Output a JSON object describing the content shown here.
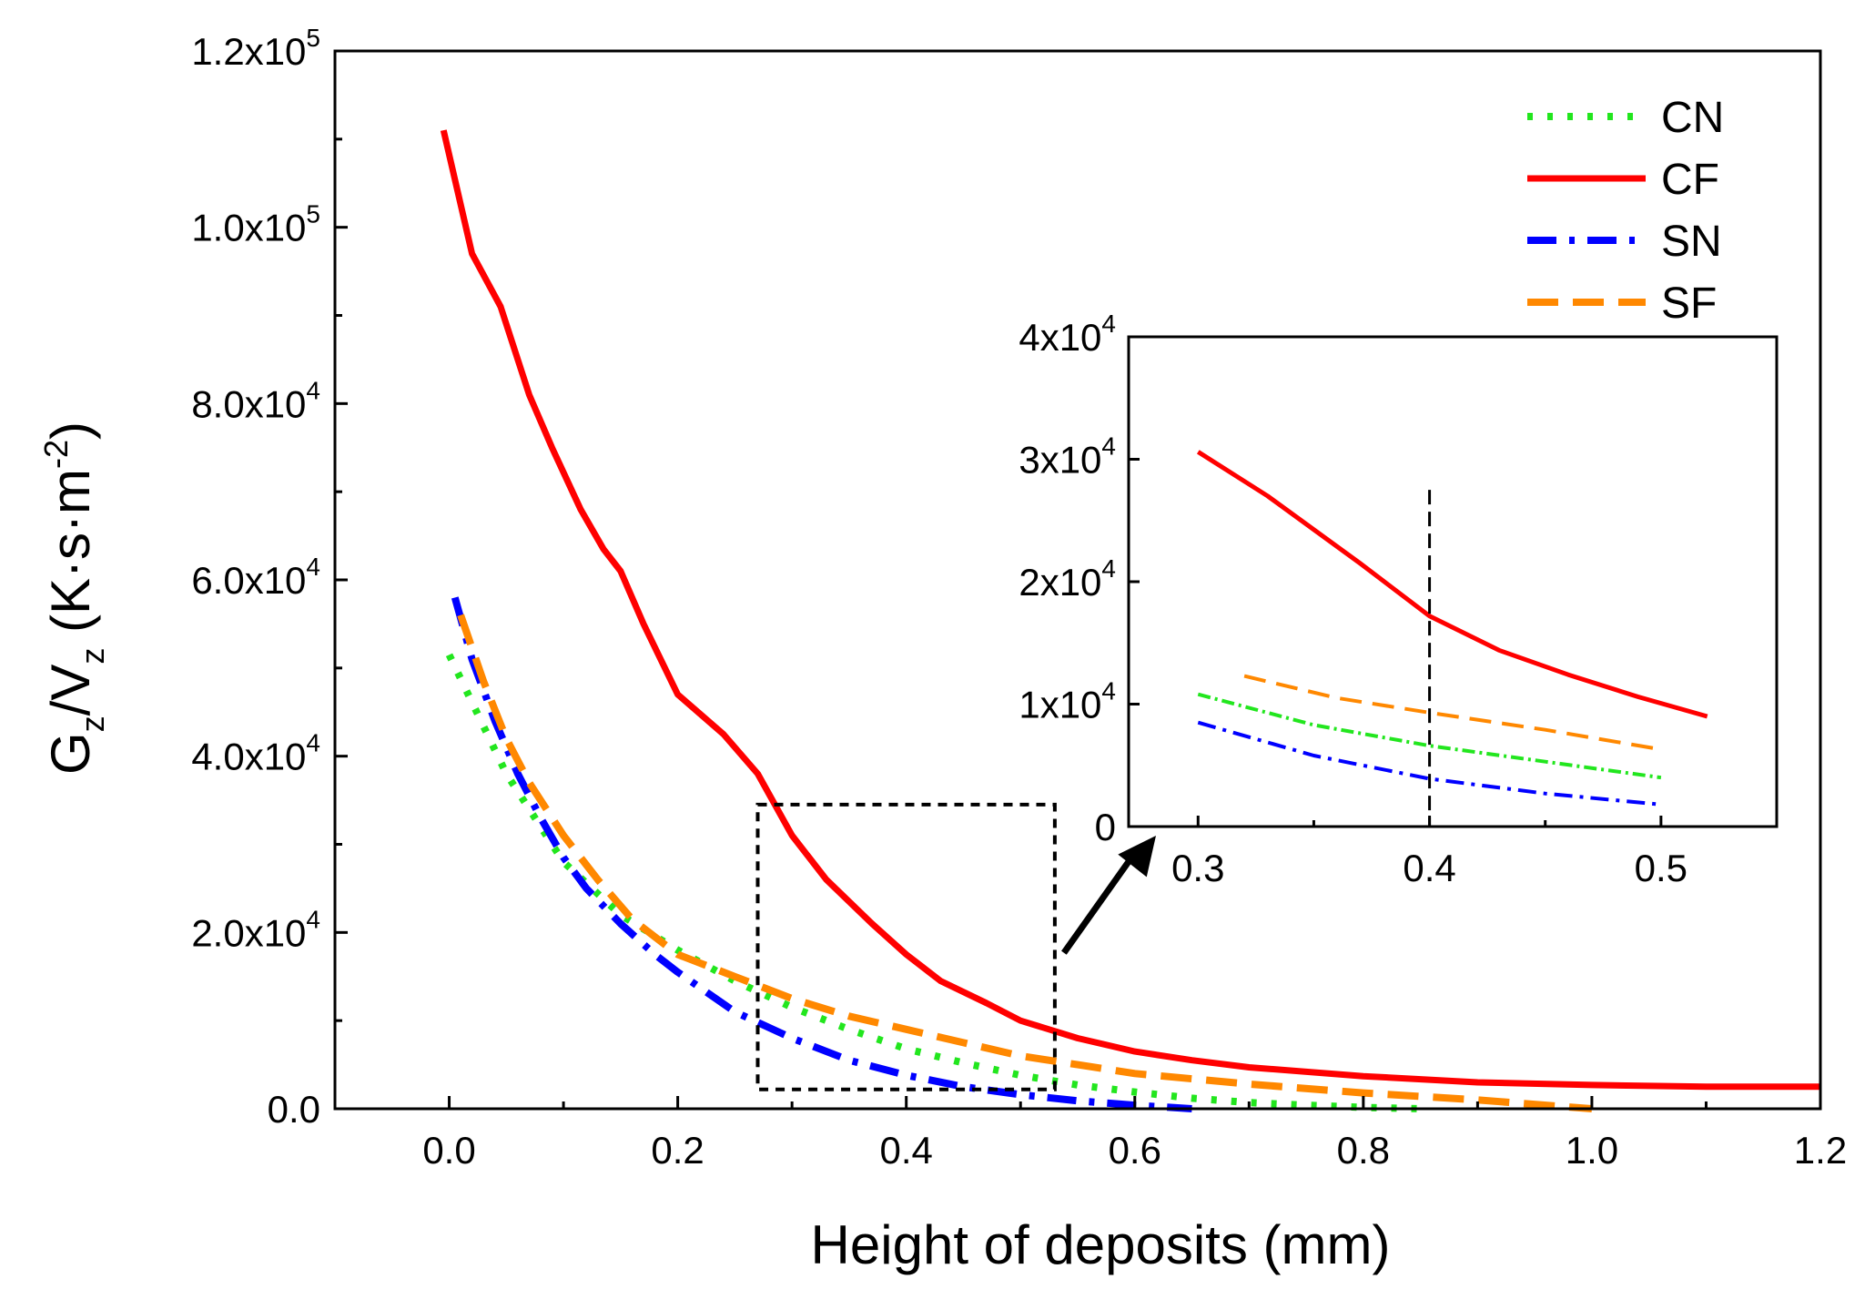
{
  "chart_data": {
    "type": "line",
    "xlabel": "Height of deposits (mm)",
    "ylabel": {
      "main": "G",
      "sub1": "z",
      "slash": "/V",
      "sub2": "z",
      "unit": " (K·s·m",
      "exp": "-2",
      "close": ")"
    },
    "xlim": [
      -0.1,
      1.2
    ],
    "ylim": [
      0,
      120000
    ],
    "x_ticks": [
      "0.0",
      "0.2",
      "0.4",
      "0.6",
      "0.8",
      "1.0",
      "1.2"
    ],
    "y_ticks": [
      {
        "mant": "0.0",
        "exp": ""
      },
      {
        "mant": "2.0x10",
        "exp": "4"
      },
      {
        "mant": "4.0x10",
        "exp": "4"
      },
      {
        "mant": "6.0x10",
        "exp": "4"
      },
      {
        "mant": "8.0x10",
        "exp": "4"
      },
      {
        "mant": "1.0x10",
        "exp": "5"
      },
      {
        "mant": "1.2x10",
        "exp": "5"
      }
    ],
    "legend_position": "top-right",
    "series": [
      {
        "name": "CN",
        "color": "#22e61e",
        "style": "dotted",
        "x": [
          0.0,
          0.05,
          0.1,
          0.15,
          0.2,
          0.25,
          0.3,
          0.35,
          0.4,
          0.45,
          0.5,
          0.55,
          0.6,
          0.65,
          0.7,
          0.75,
          0.8,
          0.85
        ],
        "y": [
          51500,
          38000,
          28000,
          22000,
          18000,
          14500,
          11500,
          9000,
          6800,
          5200,
          3800,
          2700,
          1900,
          1200,
          700,
          400,
          150,
          0
        ]
      },
      {
        "name": "CF",
        "color": "#ff0000",
        "style": "solid",
        "x": [
          -0.005,
          0.02,
          0.045,
          0.07,
          0.09,
          0.115,
          0.135,
          0.15,
          0.17,
          0.2,
          0.24,
          0.27,
          0.3,
          0.33,
          0.37,
          0.4,
          0.43,
          0.47,
          0.5,
          0.55,
          0.6,
          0.65,
          0.7,
          0.8,
          0.9,
          1.0,
          1.1,
          1.2
        ],
        "y": [
          111000,
          97000,
          91000,
          81000,
          75000,
          68000,
          63500,
          61000,
          55000,
          47000,
          42500,
          38000,
          31000,
          26000,
          21000,
          17500,
          14500,
          12000,
          10000,
          8000,
          6500,
          5500,
          4700,
          3700,
          3000,
          2700,
          2500,
          2500
        ]
      },
      {
        "name": "SN",
        "color": "#0000ff",
        "style": "dashdot",
        "x": [
          0.005,
          0.02,
          0.04,
          0.06,
          0.08,
          0.1,
          0.12,
          0.15,
          0.18,
          0.2,
          0.25,
          0.3,
          0.35,
          0.4,
          0.45,
          0.5,
          0.55,
          0.6,
          0.65
        ],
        "y": [
          58000,
          51000,
          44000,
          38000,
          33000,
          28500,
          25000,
          21000,
          17500,
          15500,
          11000,
          8000,
          5500,
          3800,
          2500,
          1600,
          900,
          400,
          0
        ]
      },
      {
        "name": "SF",
        "color": "#ff8800",
        "style": "dashed",
        "x": [
          0.01,
          0.03,
          0.05,
          0.07,
          0.1,
          0.13,
          0.16,
          0.2,
          0.25,
          0.3,
          0.35,
          0.4,
          0.45,
          0.5,
          0.55,
          0.6,
          0.7,
          0.8,
          0.9,
          1.0
        ],
        "y": [
          56000,
          48500,
          42000,
          37000,
          31000,
          26000,
          21500,
          17500,
          15000,
          12500,
          10500,
          9000,
          7500,
          6000,
          5000,
          4000,
          2800,
          1800,
          1000,
          0
        ]
      }
    ],
    "zoom_box": {
      "x0": 0.27,
      "x1": 0.53,
      "y0": 2200,
      "y1": 34500
    },
    "inset": {
      "xlim": [
        0.27,
        0.55
      ],
      "ylim": [
        0,
        40000
      ],
      "x_ticks": [
        "0.3",
        "0.4",
        "0.5"
      ],
      "y_ticks": [
        {
          "mant": "0",
          "exp": ""
        },
        {
          "mant": "1x10",
          "exp": "4"
        },
        {
          "mant": "2x10",
          "exp": "4"
        },
        {
          "mant": "3x10",
          "exp": "4"
        },
        {
          "mant": "4x10",
          "exp": "4"
        }
      ],
      "marker_x": 0.4,
      "marker_y_top": 27500,
      "series": [
        {
          "name": "CF",
          "x": [
            0.3,
            0.33,
            0.37,
            0.4,
            0.43,
            0.46,
            0.49,
            0.52
          ],
          "y": [
            30600,
            27000,
            21500,
            17200,
            14400,
            12400,
            10600,
            9000
          ]
        },
        {
          "name": "CN",
          "x": [
            0.3,
            0.35,
            0.4,
            0.45,
            0.5
          ],
          "y": [
            10800,
            8300,
            6600,
            5300,
            4000
          ]
        },
        {
          "name": "SN",
          "x": [
            0.3,
            0.35,
            0.4,
            0.45,
            0.5
          ],
          "y": [
            8500,
            5800,
            3900,
            2700,
            1800
          ]
        },
        {
          "name": "SF",
          "x": [
            0.32,
            0.36,
            0.4,
            0.45,
            0.5
          ],
          "y": [
            12300,
            10500,
            9300,
            7900,
            6300
          ]
        }
      ]
    }
  }
}
